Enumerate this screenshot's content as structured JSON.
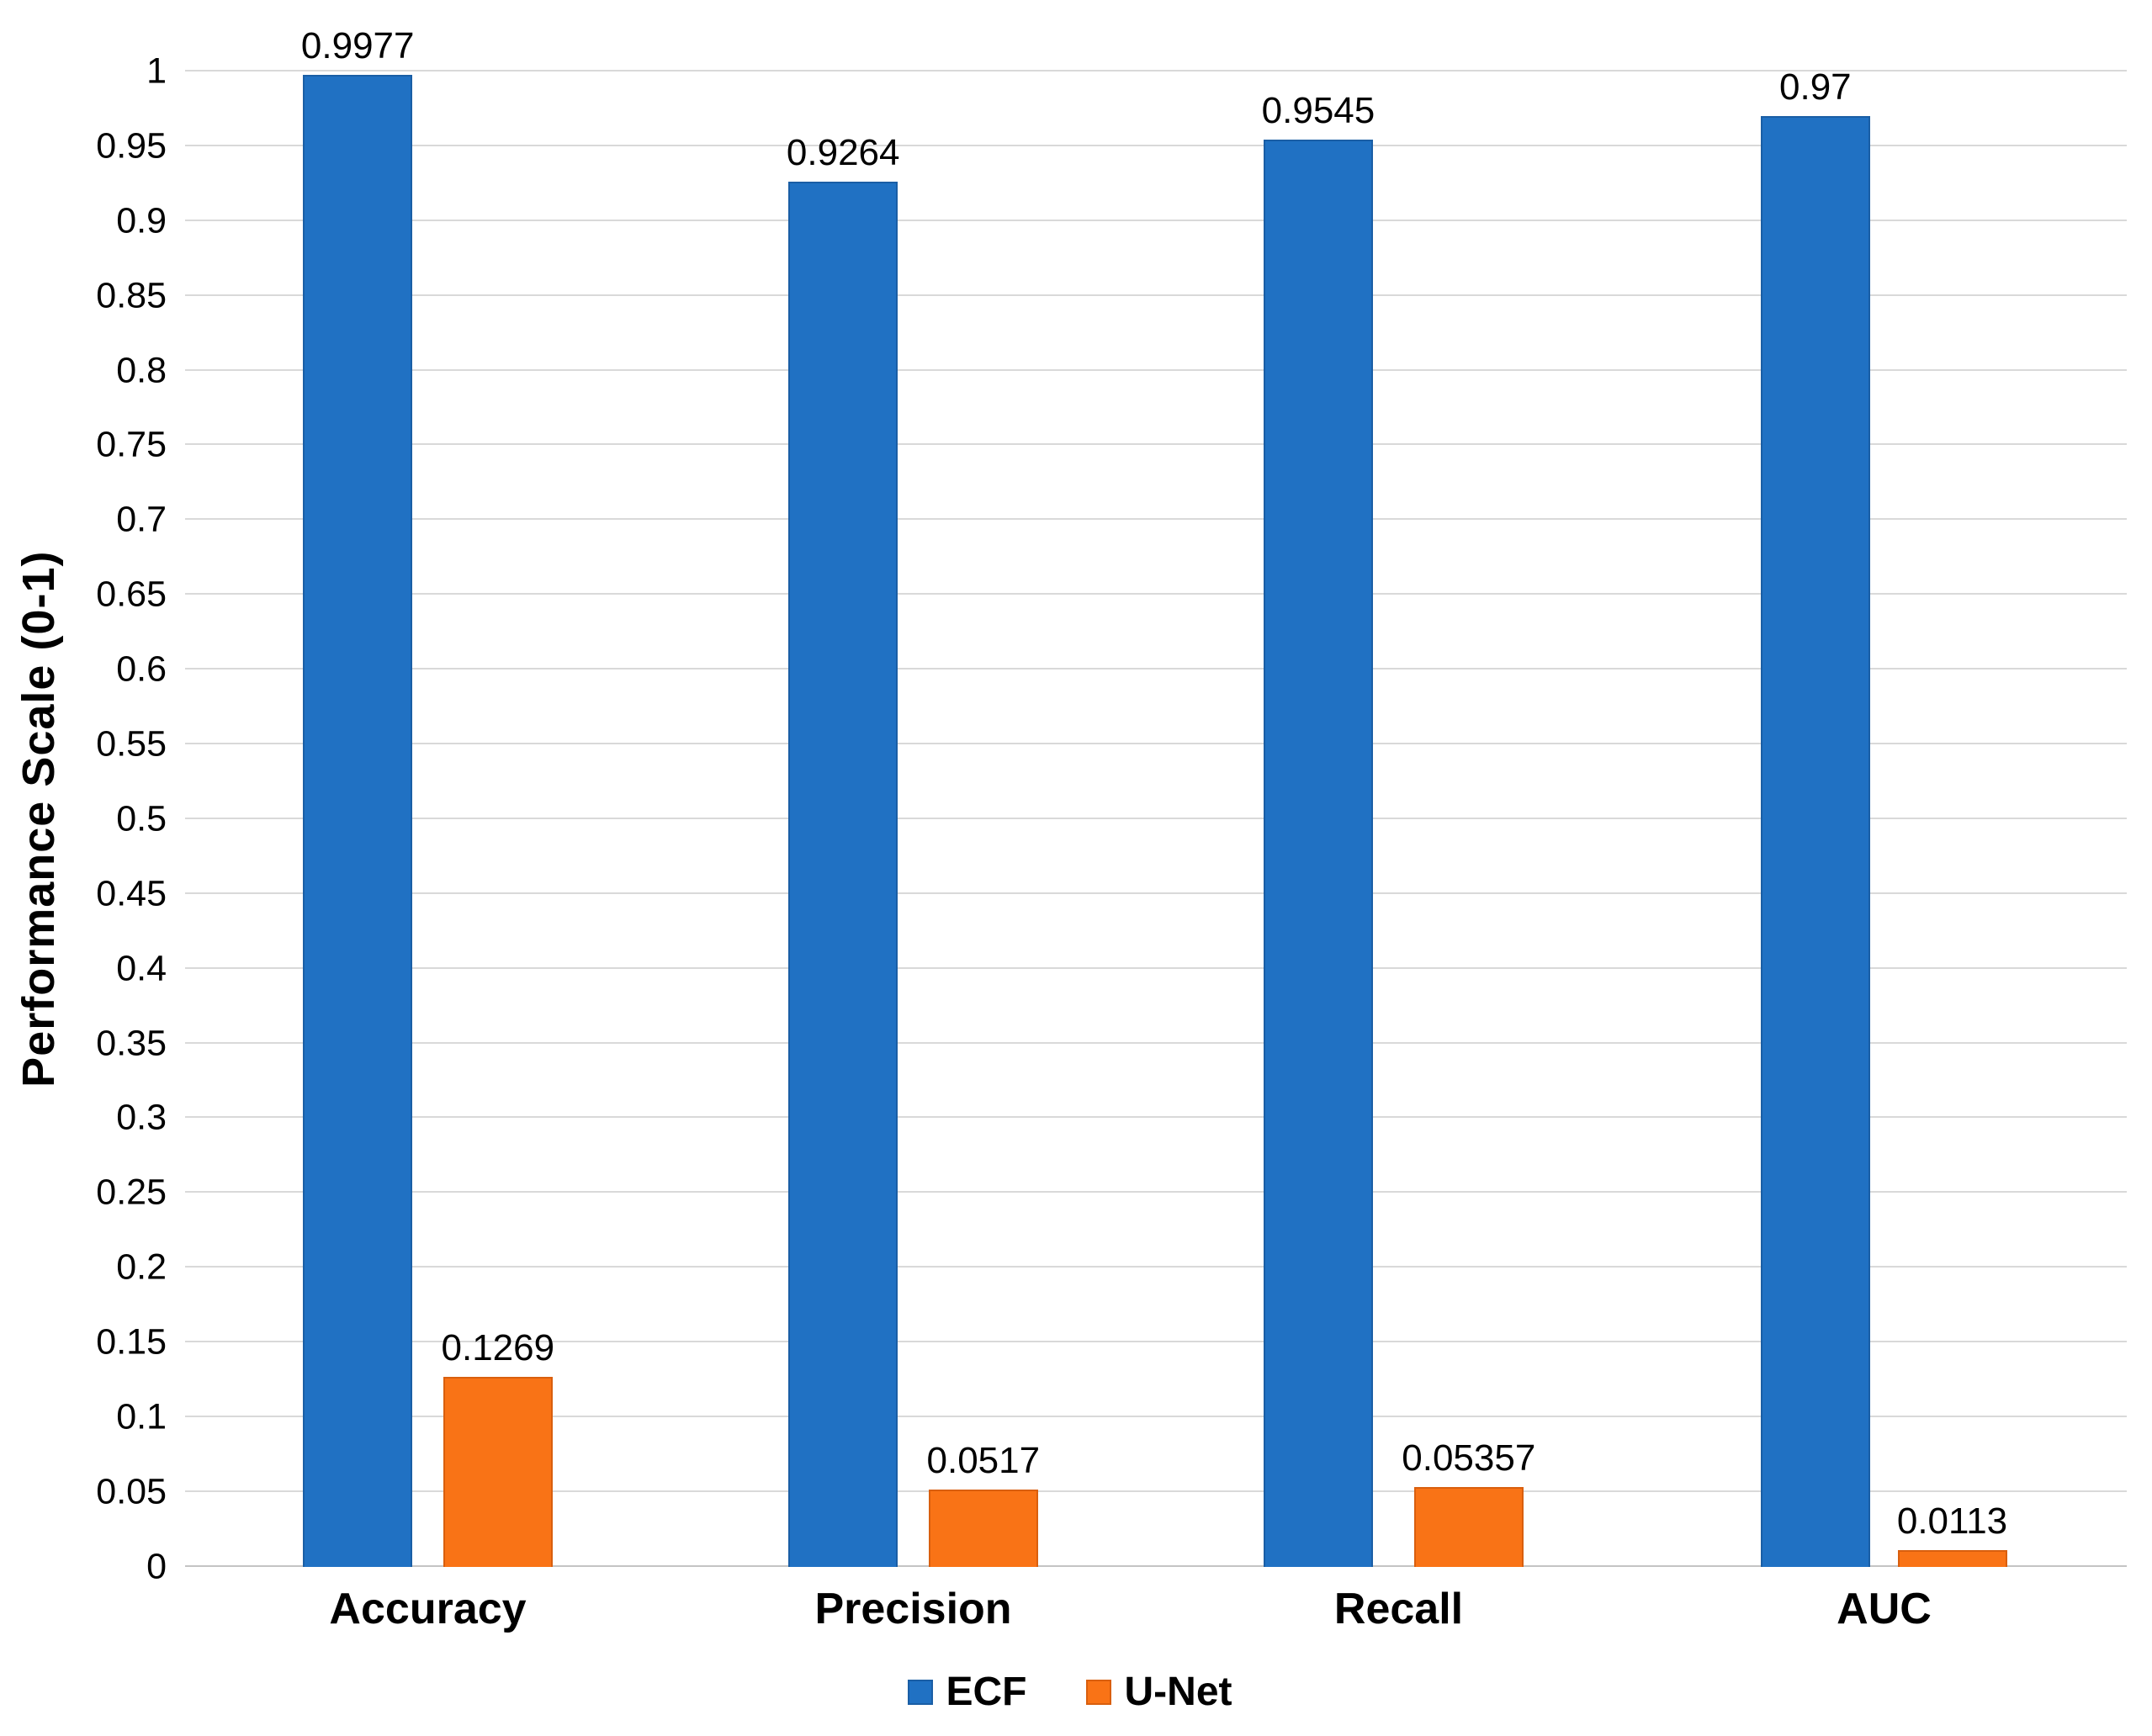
{
  "chart_data": {
    "type": "bar",
    "title": "",
    "xlabel": "",
    "ylabel": "Performance Scale (0-1)",
    "ylim": [
      0,
      1
    ],
    "ytick_step": 0.05,
    "grid": true,
    "legend_position": "bottom",
    "categories": [
      "Accuracy",
      "Precision",
      "Recall",
      "AUC"
    ],
    "series": [
      {
        "name": "ECF",
        "color": "#2071c3",
        "border": "#1a5ea5",
        "values": [
          0.9977,
          0.9264,
          0.9545,
          0.97
        ],
        "labels": [
          "0.9977",
          "0.9264",
          "0.9545",
          "0.97"
        ]
      },
      {
        "name": "U-Net",
        "color": "#f97316",
        "border": "#d95f0e",
        "values": [
          0.1269,
          0.0517,
          0.05357,
          0.0113
        ],
        "labels": [
          "0.1269",
          "0.0517",
          "0.05357",
          "0.0113"
        ]
      }
    ]
  }
}
